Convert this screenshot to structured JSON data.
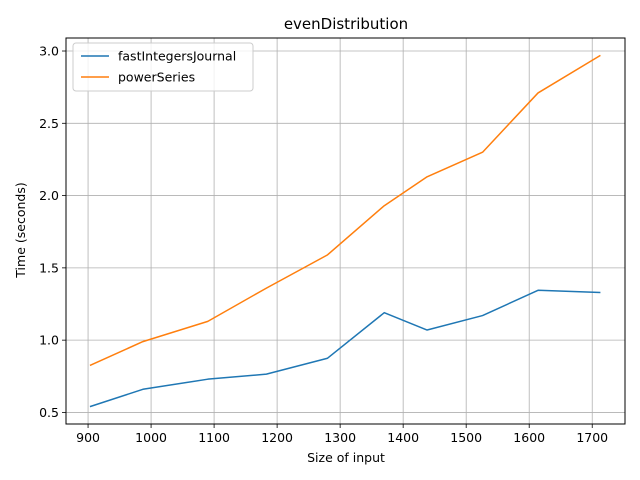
{
  "chart_data": {
    "type": "line",
    "title": "evenDistribution",
    "xlabel": "Size of input",
    "ylabel": "Time (seconds)",
    "xlim": [
      865,
      1752
    ],
    "ylim": [
      0.42,
      3.09
    ],
    "xticks": [
      900,
      1000,
      1100,
      1200,
      1300,
      1400,
      1500,
      1600,
      1700
    ],
    "xtick_labels": [
      "900",
      "1000",
      "1100",
      "1200",
      "1300",
      "1400",
      "1500",
      "1600",
      "1700"
    ],
    "yticks": [
      0.5,
      1.0,
      1.5,
      2.0,
      2.5,
      3.0
    ],
    "ytick_labels": [
      "0.5",
      "1.0",
      "1.5",
      "2.0",
      "2.5",
      "3.0"
    ],
    "grid": true,
    "legend_position": "upper-left",
    "series": [
      {
        "name": "fastIntegersJournal",
        "color": "#1f77b4",
        "x": [
          903,
          987,
          1090,
          1183,
          1280,
          1370,
          1438,
          1526,
          1614,
          1713
        ],
        "y": [
          0.54,
          0.66,
          0.73,
          0.765,
          0.875,
          1.19,
          1.07,
          1.17,
          1.345,
          1.33
        ]
      },
      {
        "name": "powerSeries",
        "color": "#ff7f0e",
        "x": [
          903,
          987,
          1090,
          1183,
          1280,
          1370,
          1438,
          1526,
          1614,
          1713
        ],
        "y": [
          0.825,
          0.99,
          1.13,
          1.36,
          1.59,
          1.93,
          2.13,
          2.3,
          2.71,
          2.97
        ]
      }
    ]
  }
}
